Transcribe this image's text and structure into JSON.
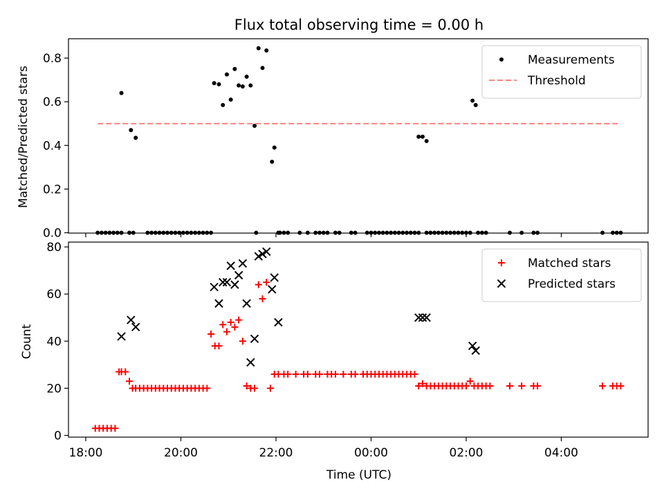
{
  "chart_data": [
    {
      "type": "scatter",
      "title": "Flux total observing time = 0.00 h",
      "xlabel": "",
      "ylabel": "Matched/Predicted stars",
      "ylim": [
        0,
        0.88
      ],
      "yticks": [
        "0.0",
        "0.2",
        "0.4",
        "0.6",
        "0.8"
      ],
      "legend_position": "top-right",
      "series": [
        {
          "name": "Measurements",
          "color": "#000000",
          "marker": "dot",
          "x": [
            "18:15",
            "18:20",
            "18:25",
            "18:30",
            "18:35",
            "18:40",
            "18:45",
            "18:55",
            "19:00",
            "19:18",
            "19:23",
            "19:28",
            "19:33",
            "19:38",
            "19:43",
            "19:48",
            "19:53",
            "19:58",
            "20:03",
            "20:08",
            "20:13",
            "20:18",
            "20:23",
            "20:28",
            "20:33",
            "20:38",
            "21:35",
            "22:05",
            "22:10",
            "22:15",
            "22:30",
            "22:40",
            "22:50",
            "22:55",
            "23:00",
            "23:05",
            "23:15",
            "23:20",
            "23:35",
            "23:40",
            "23:55",
            "00:00",
            "00:05",
            "00:10",
            "00:15",
            "00:20",
            "00:25",
            "00:30",
            "00:35",
            "00:40",
            "00:45",
            "00:50",
            "00:55",
            "01:00",
            "01:10",
            "01:15",
            "01:20",
            "01:25",
            "01:30",
            "01:35",
            "01:40",
            "01:45",
            "01:50",
            "01:55",
            "02:00",
            "02:05",
            "02:15",
            "02:20",
            "02:25",
            "02:55",
            "03:10",
            "03:25",
            "03:30",
            "04:52",
            "05:05",
            "05:10",
            "05:15",
            "18:45",
            "18:57",
            "19:03",
            "20:42",
            "20:48",
            "20:53",
            "20:58",
            "21:03",
            "21:08",
            "21:13",
            "21:18",
            "21:23",
            "21:28",
            "21:33",
            "21:38",
            "21:43",
            "21:48",
            "21:55",
            "21:58",
            "22:03",
            "01:00",
            "01:05",
            "01:10",
            "02:08",
            "02:12"
          ],
          "y": [
            0,
            0,
            0,
            0,
            0,
            0,
            0,
            0,
            0,
            0,
            0,
            0,
            0,
            0,
            0,
            0,
            0,
            0,
            0,
            0,
            0,
            0,
            0,
            0,
            0,
            0,
            0,
            0,
            0,
            0,
            0,
            0,
            0,
            0,
            0,
            0,
            0,
            0,
            0,
            0,
            0,
            0,
            0,
            0,
            0,
            0,
            0,
            0,
            0,
            0,
            0,
            0,
            0,
            0,
            0,
            0,
            0,
            0,
            0,
            0,
            0,
            0,
            0,
            0,
            0,
            0,
            0,
            0,
            0,
            0,
            0,
            0,
            0,
            0,
            0,
            0,
            0,
            0.64,
            0.47,
            0.435,
            0.685,
            0.68,
            0.585,
            0.725,
            0.61,
            0.75,
            0.675,
            0.67,
            0.715,
            0.675,
            0.49,
            0.845,
            0.755,
            0.835,
            0.325,
            0.39,
            0.0,
            0.44,
            0.44,
            0.42,
            0.605,
            0.585
          ]
        },
        {
          "name": "Threshold",
          "color": "#ff7f7f",
          "line_style": "dashed",
          "x": [
            "18:15",
            "05:15"
          ],
          "y": [
            0.5,
            0.5
          ]
        }
      ]
    },
    {
      "type": "scatter",
      "title": "",
      "xlabel": "Time (UTC)",
      "ylabel": "Count",
      "ylim": [
        -1,
        82
      ],
      "yticks": [
        "0",
        "20",
        "40",
        "60",
        "80"
      ],
      "xticks": [
        "18:00",
        "20:00",
        "22:00",
        "00:00",
        "02:00",
        "04:00"
      ],
      "legend_position": "top-right",
      "series": [
        {
          "name": "Matched stars",
          "color": "#ff0000",
          "marker": "plus",
          "x": [
            "18:12",
            "18:17",
            "18:22",
            "18:27",
            "18:32",
            "18:37",
            "18:42",
            "18:45",
            "18:50",
            "18:55",
            "18:59",
            "19:03",
            "19:08",
            "19:13",
            "19:18",
            "19:23",
            "19:28",
            "19:33",
            "19:38",
            "19:43",
            "19:48",
            "19:53",
            "19:58",
            "20:03",
            "20:08",
            "20:13",
            "20:18",
            "20:23",
            "20:28",
            "20:33",
            "20:38",
            "20:43",
            "20:48",
            "20:53",
            "20:58",
            "21:03",
            "21:08",
            "21:13",
            "21:18",
            "21:23",
            "21:28",
            "21:33",
            "21:38",
            "21:43",
            "21:48",
            "21:53",
            "21:58",
            "22:03",
            "22:10",
            "22:15",
            "22:25",
            "22:35",
            "22:40",
            "22:50",
            "22:55",
            "23:05",
            "23:10",
            "23:15",
            "23:25",
            "23:35",
            "23:40",
            "23:50",
            "23:55",
            "00:00",
            "00:05",
            "00:10",
            "00:15",
            "00:20",
            "00:25",
            "00:30",
            "00:35",
            "00:40",
            "00:45",
            "00:50",
            "00:55",
            "01:00",
            "01:05",
            "01:10",
            "01:15",
            "01:20",
            "01:25",
            "01:30",
            "01:35",
            "01:40",
            "01:45",
            "01:50",
            "01:55",
            "02:00",
            "02:05",
            "02:10",
            "02:15",
            "02:20",
            "02:25",
            "02:30",
            "02:55",
            "03:10",
            "03:25",
            "03:30",
            "04:52",
            "05:05",
            "05:10",
            "05:15"
          ],
          "y": [
            3,
            3,
            3,
            3,
            3,
            3,
            27,
            27,
            27,
            23,
            20,
            20,
            20,
            20,
            20,
            20,
            20,
            20,
            20,
            20,
            20,
            20,
            20,
            20,
            20,
            20,
            20,
            20,
            20,
            20,
            43,
            38,
            38,
            47,
            44,
            48,
            46,
            49,
            40,
            21,
            20,
            20,
            64,
            58,
            65,
            20,
            26,
            26,
            26,
            26,
            26,
            26,
            26,
            26,
            26,
            26,
            26,
            26,
            26,
            26,
            26,
            26,
            26,
            26,
            26,
            26,
            26,
            26,
            26,
            26,
            26,
            26,
            26,
            26,
            26,
            21,
            22,
            21,
            21,
            21,
            21,
            21,
            21,
            21,
            21,
            21,
            21,
            21,
            23,
            21,
            21,
            21,
            21,
            21,
            21,
            21,
            21,
            21,
            21,
            21,
            21,
            21
          ]
        },
        {
          "name": "Predicted stars",
          "color": "#000000",
          "marker": "x",
          "x": [
            "18:45",
            "18:57",
            "19:03",
            "20:42",
            "20:48",
            "20:53",
            "20:58",
            "21:03",
            "21:08",
            "21:13",
            "21:18",
            "21:23",
            "21:28",
            "21:33",
            "21:38",
            "21:43",
            "21:48",
            "21:55",
            "21:58",
            "22:03",
            "01:00",
            "01:05",
            "01:10",
            "02:08",
            "02:12"
          ],
          "y": [
            42,
            49,
            46,
            63,
            56,
            65,
            65,
            72,
            64,
            68,
            73,
            56,
            31,
            41,
            76,
            77,
            78,
            62,
            67,
            48,
            50,
            50,
            50,
            38,
            36
          ]
        }
      ]
    }
  ]
}
